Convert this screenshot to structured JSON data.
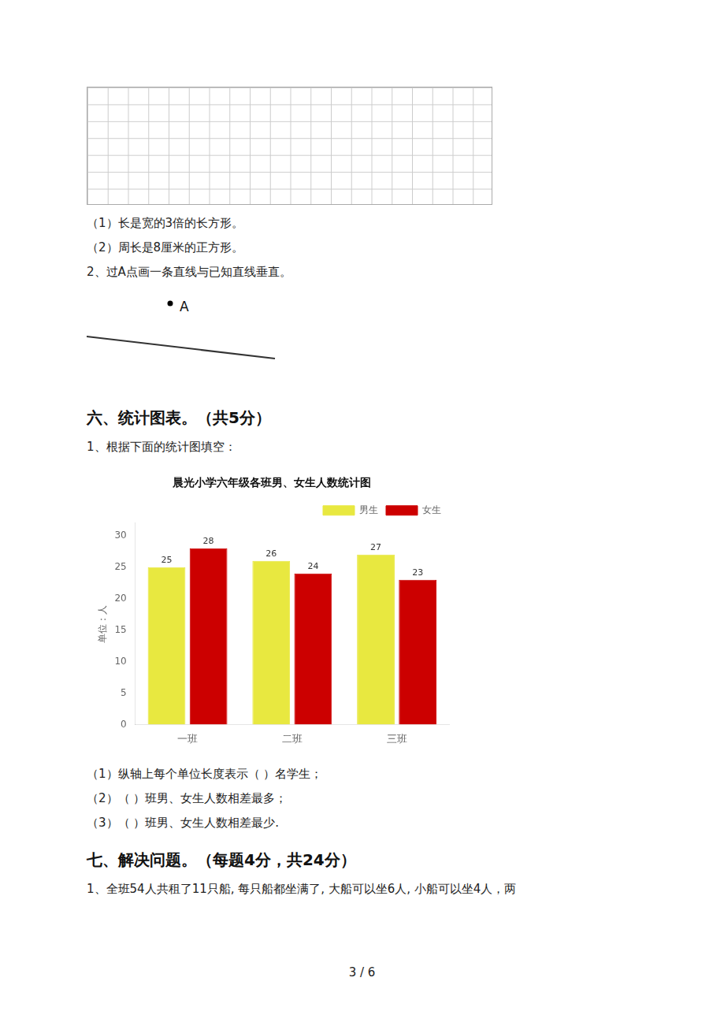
{
  "chart_data": {
    "type": "bar",
    "title": "晨光小学六年级各班男、女生人数统计图",
    "ylabel": "单位：人",
    "categories": [
      "一班",
      "二班",
      "三班"
    ],
    "series": [
      {
        "name": "男生",
        "color": "#e8e840",
        "values": [
          25,
          26,
          27
        ]
      },
      {
        "name": "女生",
        "color": "#cc0000",
        "values": [
          28,
          24,
          23
        ]
      }
    ],
    "ylim": [
      0,
      32
    ],
    "yticks": [
      0,
      5,
      10,
      15,
      20,
      25,
      30
    ],
    "grid": false,
    "legend": "upper right",
    "data_labels": true,
    "annotations": [
      "（1）长是宽的3倍的长方形。",
      "（2）周长是8厘米的正方形。",
      "2、过A点画一条直线与已知直线垂直。",
      "A",
      "六、统计图表。（共5分）",
      "1、根据下面的统计图填空：",
      "（1）纵轴上每个单位长度表示（        ）名学生；",
      "（2）（        ）班男、女生人数相差最多；",
      "（3）（        ）班男、女生人数相差最少.",
      "七、解决问题。（每题4分，共24分）",
      "1、全班54人共租了11只船, 每只船都坐满了, 大船可以坐6人, 小船可以坐4人，两",
      "3 / 6"
    ]
  }
}
